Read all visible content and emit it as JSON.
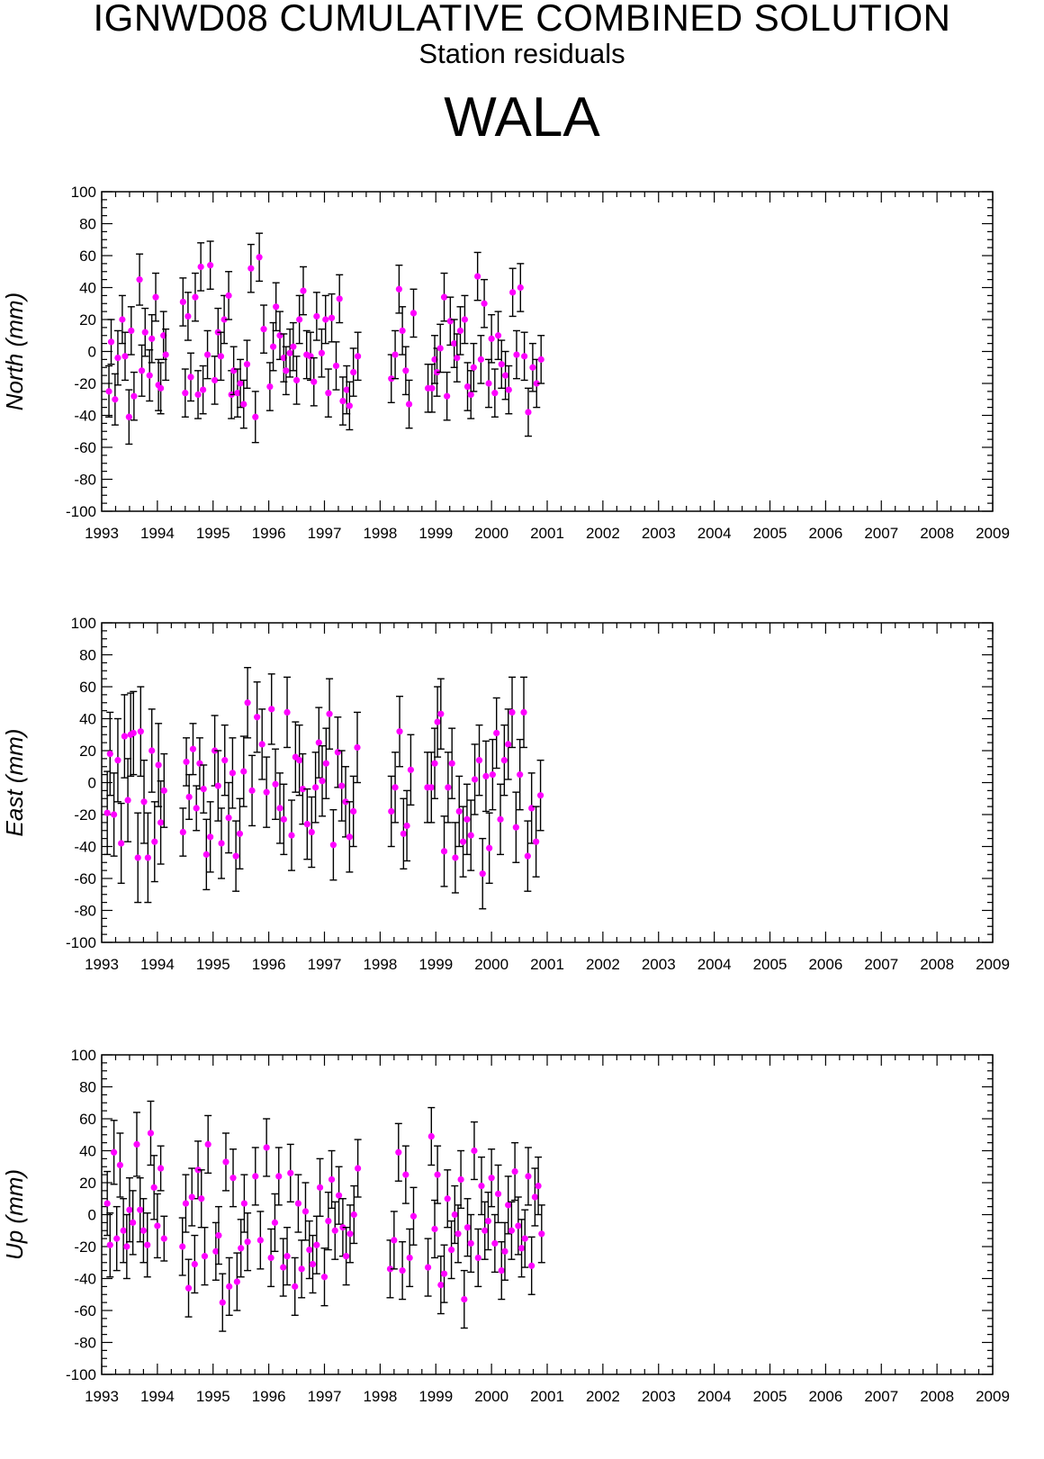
{
  "header": {
    "title": "IGNWD08 CUMULATIVE COMBINED SOLUTION",
    "subtitle": "Station residuals",
    "station": "WALA"
  },
  "colors": {
    "marker": "#ff00ff",
    "errorbar": "#000000",
    "axis": "#000000"
  },
  "chart_data": [
    {
      "type": "scatter",
      "ylabel": "North (mm)",
      "ylim": [
        -100,
        100
      ],
      "xlim": [
        1993,
        2009
      ],
      "yticks": [
        "100",
        "80",
        "60",
        "40",
        "20",
        "0",
        "-20",
        "-40",
        "-60",
        "-80",
        "-100"
      ],
      "xticks": [
        "1993",
        "1994",
        "1995",
        "1996",
        "1997",
        "1998",
        "1999",
        "2000",
        "2001",
        "2002",
        "2003",
        "2004",
        "2005",
        "2006",
        "2007",
        "2008",
        "2009"
      ],
      "x": [
        1993.13,
        1993.17,
        1993.24,
        1993.29,
        1993.37,
        1993.42,
        1993.49,
        1993.53,
        1993.58,
        1993.68,
        1993.72,
        1993.78,
        1993.86,
        1993.9,
        1993.97,
        1994.02,
        1994.06,
        1994.11,
        1994.15,
        1994.46,
        1994.5,
        1994.55,
        1994.6,
        1994.68,
        1994.73,
        1994.78,
        1994.82,
        1994.9,
        1994.95,
        1995.03,
        1995.09,
        1995.14,
        1995.2,
        1995.28,
        1995.33,
        1995.37,
        1995.44,
        1995.49,
        1995.55,
        1995.61,
        1995.68,
        1995.76,
        1995.83,
        1995.91,
        1996.02,
        1996.08,
        1996.13,
        1996.2,
        1996.27,
        1996.31,
        1996.38,
        1996.44,
        1996.5,
        1996.55,
        1996.62,
        1996.68,
        1996.75,
        1996.81,
        1996.86,
        1996.95,
        1997.02,
        1997.07,
        1997.13,
        1997.21,
        1997.27,
        1997.33,
        1997.4,
        1997.45,
        1997.52,
        1997.6,
        1998.2,
        1998.27,
        1998.34,
        1998.4,
        1998.46,
        1998.52,
        1998.6,
        1998.86,
        1998.93,
        1998.98,
        1999.02,
        1999.08,
        1999.15,
        1999.2,
        1999.26,
        1999.33,
        1999.38,
        1999.44,
        1999.52,
        1999.57,
        1999.63,
        1999.68,
        1999.75,
        1999.81,
        1999.87,
        1999.95,
        2000.0,
        2000.06,
        2000.12,
        2000.18,
        2000.25,
        2000.31,
        2000.38,
        2000.45,
        2000.52,
        2000.59,
        2000.66,
        2000.74,
        2000.81,
        2000.89
      ],
      "y": [
        -25,
        6,
        -30,
        -4,
        20,
        -3,
        -41,
        13,
        -28,
        45,
        -12,
        12,
        -15,
        8,
        34,
        -21,
        -23,
        10,
        -2,
        31,
        -26,
        22,
        -16,
        34,
        -27,
        53,
        -24,
        -2,
        54,
        -18,
        12,
        -3,
        20,
        35,
        -27,
        -12,
        -26,
        -20,
        -33,
        -8,
        52,
        -41,
        59,
        14,
        -22,
        3,
        28,
        10,
        -4,
        -12,
        -1,
        3,
        -18,
        20,
        38,
        -2,
        -3,
        -19,
        22,
        -1,
        20,
        -26,
        21,
        -9,
        33,
        -31,
        -24,
        -34,
        -13,
        -3,
        -17,
        -2,
        39,
        13,
        -12,
        -33,
        24,
        -23,
        -23,
        -5,
        -13,
        2,
        34,
        -28,
        19,
        5,
        -4,
        13,
        20,
        -22,
        -27,
        -10,
        47,
        -5,
        30,
        -20,
        8,
        -26,
        10,
        -8,
        -15,
        -24,
        37,
        -2,
        40,
        -3,
        -38,
        -10,
        -20,
        -5
      ],
      "err": [
        16,
        14,
        16,
        17,
        15,
        15,
        17,
        15,
        15,
        16,
        16,
        15,
        16,
        15,
        15,
        16,
        16,
        15,
        16,
        15,
        15,
        15,
        15,
        15,
        15,
        15,
        15,
        15,
        15,
        15,
        15,
        15,
        15,
        15,
        15,
        15,
        15,
        15,
        15,
        15,
        15,
        16,
        15,
        15,
        15,
        15,
        15,
        15,
        15,
        15,
        15,
        15,
        15,
        15,
        15,
        15,
        15,
        15,
        15,
        15,
        15,
        15,
        15,
        15,
        15,
        15,
        15,
        15,
        15,
        15,
        15,
        15,
        15,
        15,
        15,
        15,
        15,
        15,
        15,
        15,
        15,
        15,
        15,
        15,
        15,
        15,
        15,
        15,
        15,
        15,
        15,
        15,
        15,
        15,
        15,
        15,
        15,
        15,
        15,
        15,
        15,
        15,
        15,
        15,
        15,
        15,
        15,
        15,
        15,
        15
      ]
    },
    {
      "type": "scatter",
      "ylabel": "East (mm)",
      "ylim": [
        -100,
        100
      ],
      "xlim": [
        1993,
        2009
      ],
      "yticks": [
        "100",
        "80",
        "60",
        "40",
        "20",
        "0",
        "-20",
        "-40",
        "-60",
        "-80",
        "-100"
      ],
      "xticks": [
        "1993",
        "1994",
        "1995",
        "1996",
        "1997",
        "1998",
        "1999",
        "2000",
        "2001",
        "2002",
        "2003",
        "2004",
        "2005",
        "2006",
        "2007",
        "2008",
        "2009"
      ],
      "x": [
        1993.1,
        1993.15,
        1993.22,
        1993.29,
        1993.35,
        1993.41,
        1993.47,
        1993.52,
        1993.57,
        1993.65,
        1993.7,
        1993.76,
        1993.83,
        1993.9,
        1993.95,
        1994.02,
        1994.06,
        1994.12,
        1994.46,
        1994.52,
        1994.57,
        1994.64,
        1994.7,
        1994.76,
        1994.83,
        1994.88,
        1994.95,
        1995.03,
        1995.09,
        1995.15,
        1995.21,
        1995.28,
        1995.35,
        1995.41,
        1995.48,
        1995.55,
        1995.62,
        1995.7,
        1995.79,
        1995.88,
        1995.96,
        1996.05,
        1996.12,
        1996.2,
        1996.27,
        1996.33,
        1996.41,
        1996.48,
        1996.55,
        1996.61,
        1996.69,
        1996.77,
        1996.84,
        1996.9,
        1996.96,
        1997.03,
        1997.09,
        1997.16,
        1997.24,
        1997.31,
        1997.38,
        1997.45,
        1997.52,
        1997.59,
        1998.2,
        1998.27,
        1998.35,
        1998.42,
        1998.48,
        1998.55,
        1998.85,
        1998.92,
        1998.98,
        1999.03,
        1999.09,
        1999.15,
        1999.22,
        1999.29,
        1999.35,
        1999.42,
        1999.49,
        1999.56,
        1999.63,
        1999.7,
        1999.78,
        1999.84,
        1999.9,
        1999.96,
        2000.02,
        2000.09,
        2000.16,
        2000.23,
        2000.3,
        2000.37,
        2000.44,
        2000.51,
        2000.58,
        2000.65,
        2000.72,
        2000.8,
        2000.88
      ],
      "y": [
        -19,
        18,
        -20,
        14,
        -38,
        29,
        -11,
        30,
        31,
        -47,
        32,
        -12,
        -47,
        20,
        -37,
        11,
        -25,
        -5,
        -31,
        13,
        -9,
        21,
        -16,
        12,
        -4,
        -45,
        -34,
        20,
        -2,
        -38,
        14,
        -22,
        6,
        -46,
        -32,
        7,
        50,
        -5,
        41,
        24,
        -6,
        46,
        -1,
        -16,
        -23,
        44,
        -33,
        16,
        14,
        -4,
        -26,
        -31,
        -3,
        25,
        1,
        12,
        43,
        -39,
        19,
        -2,
        -12,
        -34,
        -18,
        22,
        -18,
        -3,
        32,
        -32,
        -27,
        8,
        -3,
        -3,
        12,
        38,
        43,
        -43,
        -3,
        12,
        -47,
        -18,
        -37,
        -23,
        -33,
        2,
        14,
        -57,
        4,
        -41,
        5,
        31,
        -23,
        14,
        24,
        44,
        -28,
        5,
        44,
        -46,
        -16,
        -37,
        -8
      ],
      "err": [
        26,
        26,
        26,
        26,
        25,
        26,
        26,
        26,
        26,
        28,
        28,
        26,
        28,
        26,
        25,
        26,
        26,
        23,
        15,
        15,
        14,
        16,
        14,
        16,
        15,
        22,
        22,
        22,
        22,
        22,
        22,
        22,
        22,
        22,
        22,
        22,
        22,
        22,
        22,
        22,
        22,
        22,
        22,
        22,
        22,
        22,
        22,
        22,
        22,
        22,
        22,
        22,
        22,
        22,
        22,
        22,
        22,
        22,
        22,
        22,
        22,
        22,
        22,
        22,
        22,
        22,
        22,
        22,
        22,
        22,
        22,
        22,
        22,
        22,
        22,
        22,
        22,
        22,
        22,
        22,
        22,
        22,
        22,
        22,
        22,
        22,
        22,
        22,
        22,
        22,
        22,
        22,
        22,
        22,
        22,
        22,
        22,
        22,
        22,
        22,
        22
      ]
    },
    {
      "type": "scatter",
      "ylabel": "Up (mm)",
      "ylim": [
        -100,
        100
      ],
      "xlim": [
        1993,
        2009
      ],
      "yticks": [
        "100",
        "80",
        "60",
        "40",
        "20",
        "0",
        "-20",
        "-40",
        "-60",
        "-80",
        "-100"
      ],
      "xticks": [
        "1993",
        "1994",
        "1995",
        "1996",
        "1997",
        "1998",
        "1999",
        "2000",
        "2001",
        "2002",
        "2003",
        "2004",
        "2005",
        "2006",
        "2007",
        "2008",
        "2009"
      ],
      "x": [
        1993.1,
        1993.15,
        1993.22,
        1993.27,
        1993.33,
        1993.39,
        1993.45,
        1993.5,
        1993.56,
        1993.63,
        1993.69,
        1993.75,
        1993.82,
        1993.88,
        1993.94,
        1994.0,
        1994.06,
        1994.12,
        1994.45,
        1994.51,
        1994.56,
        1994.62,
        1994.67,
        1994.73,
        1994.79,
        1994.85,
        1994.91,
        1995.05,
        1995.1,
        1995.17,
        1995.23,
        1995.29,
        1995.36,
        1995.43,
        1995.5,
        1995.56,
        1995.62,
        1995.76,
        1995.85,
        1995.96,
        1996.04,
        1996.11,
        1996.18,
        1996.26,
        1996.33,
        1996.39,
        1996.47,
        1996.53,
        1996.59,
        1996.66,
        1996.73,
        1996.79,
        1996.86,
        1996.92,
        1997.0,
        1997.07,
        1997.13,
        1997.19,
        1997.26,
        1997.33,
        1997.39,
        1997.46,
        1997.53,
        1997.6,
        1998.18,
        1998.25,
        1998.33,
        1998.4,
        1998.46,
        1998.53,
        1998.6,
        1998.86,
        1998.92,
        1998.98,
        1999.03,
        1999.09,
        1999.15,
        1999.21,
        1999.28,
        1999.34,
        1999.4,
        1999.45,
        1999.51,
        1999.57,
        1999.63,
        1999.69,
        1999.76,
        1999.82,
        1999.88,
        1999.94,
        2000.0,
        2000.06,
        2000.12,
        2000.18,
        2000.24,
        2000.3,
        2000.36,
        2000.42,
        2000.48,
        2000.54,
        2000.6,
        2000.66,
        2000.72,
        2000.78,
        2000.84,
        2000.9
      ],
      "y": [
        7,
        -19,
        39,
        -15,
        31,
        -10,
        -20,
        3,
        -5,
        44,
        3,
        -10,
        -19,
        51,
        17,
        -7,
        29,
        -15,
        -20,
        7,
        -46,
        11,
        -31,
        28,
        10,
        -26,
        44,
        -23,
        -13,
        -55,
        33,
        -45,
        23,
        -42,
        -21,
        7,
        -17,
        24,
        -16,
        42,
        -27,
        -5,
        24,
        -33,
        -26,
        26,
        -45,
        7,
        -34,
        2,
        -22,
        -31,
        -19,
        17,
        -39,
        -4,
        22,
        -10,
        12,
        -8,
        -26,
        -12,
        0,
        29,
        -34,
        -16,
        39,
        -35,
        25,
        -27,
        -1,
        -33,
        49,
        -9,
        25,
        -44,
        -37,
        10,
        -22,
        0,
        -12,
        22,
        -53,
        -8,
        -18,
        40,
        -27,
        18,
        -10,
        -4,
        23,
        -18,
        13,
        -35,
        -23,
        6,
        -10,
        27,
        -7,
        -21,
        -15,
        24,
        -32,
        11,
        18,
        -12
      ],
      "err": [
        20,
        20,
        20,
        20,
        20,
        20,
        20,
        20,
        20,
        20,
        20,
        20,
        20,
        20,
        20,
        20,
        14,
        14,
        18,
        18,
        18,
        18,
        18,
        18,
        18,
        18,
        18,
        18,
        18,
        18,
        18,
        18,
        18,
        18,
        18,
        18,
        18,
        18,
        18,
        18,
        18,
        18,
        18,
        18,
        18,
        18,
        18,
        18,
        18,
        18,
        18,
        18,
        18,
        18,
        18,
        18,
        18,
        18,
        18,
        18,
        18,
        18,
        18,
        18,
        18,
        18,
        18,
        18,
        18,
        18,
        18,
        18,
        18,
        18,
        18,
        18,
        18,
        18,
        18,
        18,
        18,
        18,
        18,
        18,
        18,
        18,
        18,
        18,
        18,
        18,
        18,
        18,
        18,
        18,
        18,
        18,
        18,
        18,
        18,
        18,
        18,
        18,
        18,
        18,
        18,
        18
      ]
    }
  ]
}
